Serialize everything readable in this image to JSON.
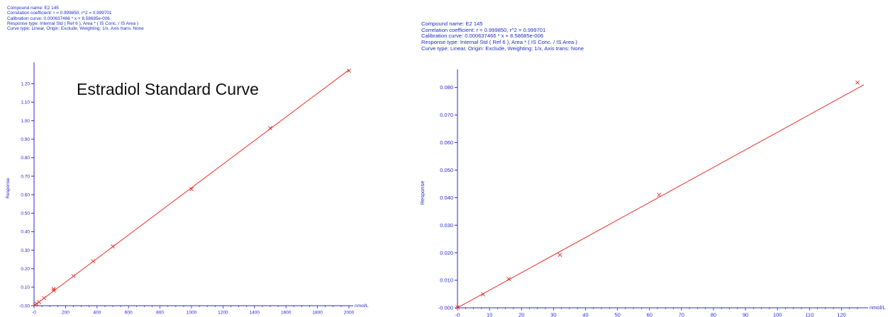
{
  "colors": {
    "axis": "#2a2ad0",
    "line": "#e8302a",
    "text": "#1f2fbf",
    "title": "#111111"
  },
  "charts": [
    {
      "info_lines": [
        "Compound name: E2 145",
        "Correlation coefficient: r = 0.999850, r^2 = 0.999701",
        "Calibration curve: 0.000637466 * x + 8.58685e-006",
        "Response type: Internal Std ( Ref 6 ), Area * ( IS Conc. / IS Area )",
        "Curve type: Linear, Origin: Exclude, Weighting: 1/x, Axis trans: None"
      ],
      "title": "Estradiol Standard Curve",
      "xlabel": "nmol/L",
      "ylabel": "Response",
      "x_ticks": [
        "-0",
        "200",
        "400",
        "600",
        "800",
        "1000",
        "1200",
        "1400",
        "1600",
        "1800",
        "2000"
      ],
      "y_ticks": [
        "-0.00",
        "0.10",
        "0.20",
        "0.30",
        "0.40",
        "0.50",
        "0.60",
        "0.70",
        "0.80",
        "0.90",
        "1.00",
        "1.10",
        "1.20"
      ]
    },
    {
      "info_lines": [
        "Compound name: E2 145",
        "Correlation coefficient: r = 0.999850, r^2 = 0.999701",
        "Calibration curve: 0.000637466 * x + 8.58685e-006",
        "Response type: Internal Std ( Ref 6 ), Area * ( IS Conc. / IS Area )",
        "Curve type: Linear, Origin: Exclude, Weighting: 1/x, Axis trans: None"
      ],
      "xlabel": "nmol/L",
      "ylabel": "Response",
      "x_ticks": [
        "-0",
        "10",
        "20",
        "30",
        "40",
        "50",
        "60",
        "70",
        "80",
        "90",
        "100",
        "110",
        "120"
      ],
      "y_ticks": [
        "-0.000",
        "0.010",
        "0.020",
        "0.030",
        "0.040",
        "0.050",
        "0.060",
        "0.070",
        "0.080"
      ]
    }
  ],
  "chart_data": [
    {
      "type": "scatter",
      "title": "Estradiol Standard Curve",
      "xlabel": "nmol/L",
      "ylabel": "Response",
      "xlim": [
        0,
        2000
      ],
      "ylim": [
        0,
        1.27
      ],
      "x_ticks": [
        0,
        200,
        400,
        600,
        800,
        1000,
        1200,
        1400,
        1600,
        1800,
        2000
      ],
      "y_ticks": [
        0,
        0.1,
        0.2,
        0.3,
        0.4,
        0.5,
        0.6,
        0.7,
        0.8,
        0.9,
        1.0,
        1.1,
        1.2
      ],
      "fit_line": {
        "slope": 0.000637466,
        "intercept": 8.58685e-06
      },
      "series": [
        {
          "points": [
            [
              8,
              0.005
            ],
            [
              16,
              0.01
            ],
            [
              32,
              0.02
            ],
            [
              63,
              0.041
            ],
            [
              125,
              0.082
            ],
            [
              125,
              0.09
            ],
            [
              250,
              0.16
            ],
            [
              375,
              0.24
            ],
            [
              500,
              0.32
            ],
            [
              1000,
              0.63
            ],
            [
              1500,
              0.96
            ],
            [
              2000,
              1.27
            ]
          ]
        }
      ]
    },
    {
      "type": "scatter",
      "xlabel": "nmol/L",
      "ylabel": "Response",
      "xlim": [
        0,
        127
      ],
      "ylim": [
        0,
        0.0835
      ],
      "x_ticks": [
        0,
        10,
        20,
        30,
        40,
        50,
        60,
        70,
        80,
        90,
        100,
        110,
        120
      ],
      "y_ticks": [
        0,
        0.01,
        0.02,
        0.03,
        0.04,
        0.05,
        0.06,
        0.07,
        0.08
      ],
      "fit_line": {
        "slope": 0.000637466,
        "intercept": 8.58685e-06
      },
      "series": [
        {
          "points": [
            [
              0,
              0.0002
            ],
            [
              8,
              0.0049
            ],
            [
              16,
              0.0105
            ],
            [
              32,
              0.0192
            ],
            [
              63,
              0.041
            ],
            [
              125,
              0.0818
            ]
          ]
        }
      ]
    }
  ]
}
